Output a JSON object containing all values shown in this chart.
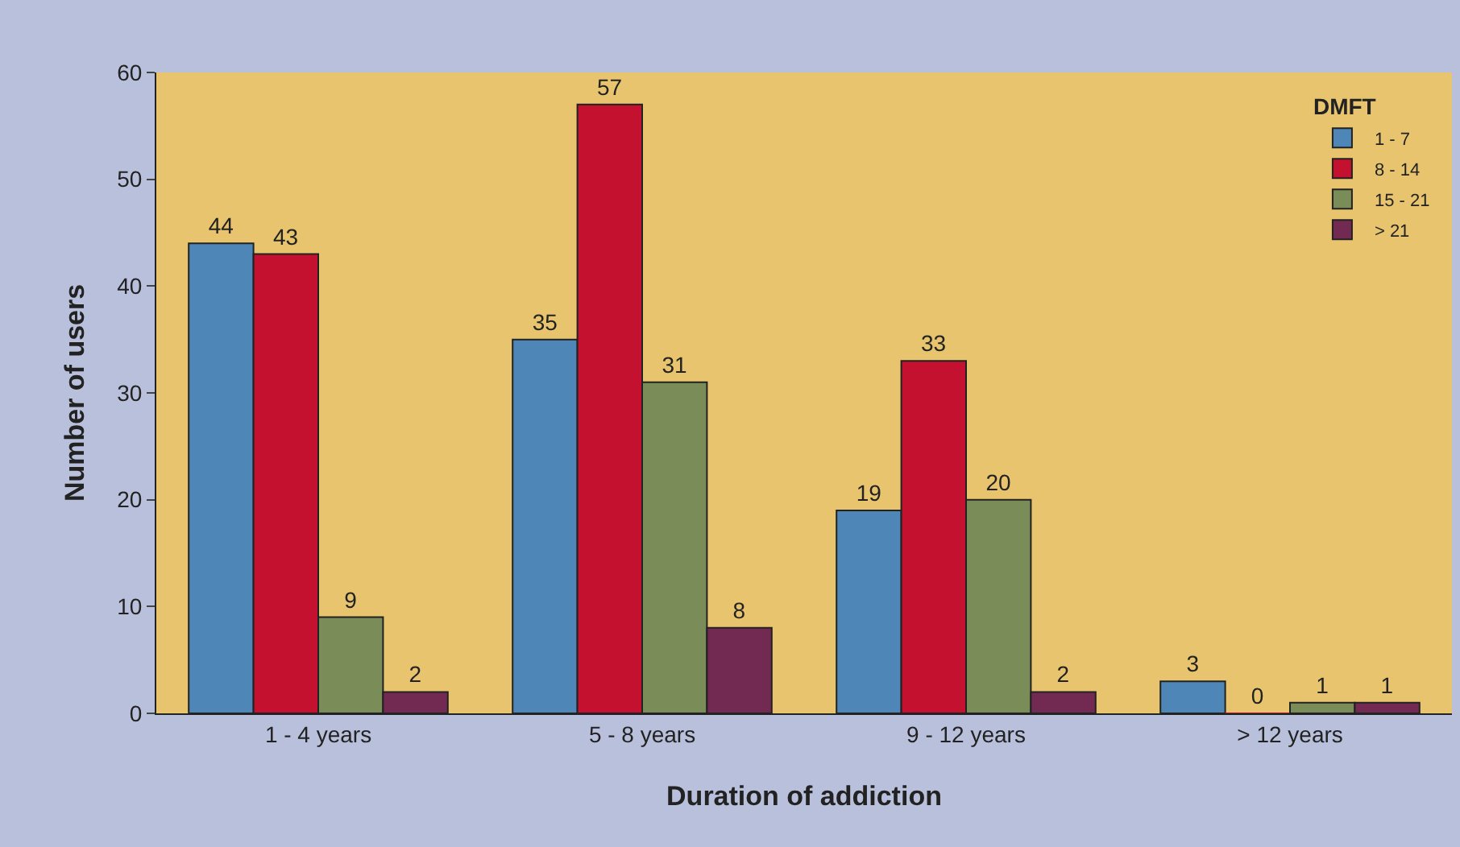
{
  "chart_data": {
    "type": "bar",
    "xlabel": "Duration of addiction",
    "ylabel": "Number of users",
    "legend_title": "DMFT",
    "categories": [
      "1 - 4 years",
      "5 - 8 years",
      "9 - 12 years",
      "> 12 years"
    ],
    "series": [
      {
        "name": "1 - 7",
        "color": "#4f86b8",
        "values": [
          44,
          35,
          19,
          3
        ]
      },
      {
        "name": "8 - 14",
        "color": "#c4112f",
        "values": [
          43,
          57,
          33,
          0
        ]
      },
      {
        "name": "15 - 21",
        "color": "#7a8c58",
        "values": [
          9,
          31,
          20,
          1
        ]
      },
      {
        "name": "> 21",
        "color": "#722a52",
        "values": [
          2,
          8,
          2,
          1
        ]
      }
    ],
    "ylim": [
      0,
      60
    ],
    "yticks": [
      0,
      10,
      20,
      30,
      40,
      50,
      60
    ],
    "data_labels": true,
    "grid": false,
    "legend": "top right"
  }
}
